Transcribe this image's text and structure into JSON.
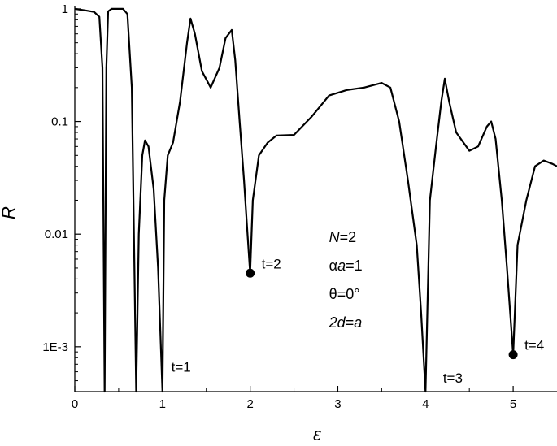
{
  "chart_data": {
    "type": "line",
    "xlabel": "ε",
    "ylabel": "R",
    "xlim": [
      0,
      5.5
    ],
    "ylim": [
      0.0004,
      1.05
    ],
    "yscale": "log",
    "x_ticks": [
      0,
      1,
      2,
      3,
      4,
      5
    ],
    "x_tick_labels": [
      "0",
      "1",
      "2",
      "3",
      "4",
      "5"
    ],
    "y_ticks": [
      1,
      0.1,
      0.01,
      0.001
    ],
    "y_tick_labels": [
      "1",
      "0.1",
      "0.01",
      "1E-3"
    ],
    "grid": false,
    "legend": "none",
    "series": [
      {
        "color": "#000000",
        "points": [
          [
            0.0,
            1.0
          ],
          [
            0.12,
            0.97
          ],
          [
            0.22,
            0.94
          ],
          [
            0.28,
            0.85
          ],
          [
            0.315,
            0.3
          ],
          [
            0.34,
            0.0004
          ],
          [
            0.36,
            0.3
          ],
          [
            0.38,
            0.95
          ],
          [
            0.42,
            1.0
          ],
          [
            0.55,
            1.0
          ],
          [
            0.6,
            0.9
          ],
          [
            0.65,
            0.2
          ],
          [
            0.7,
            0.0004
          ],
          [
            0.73,
            0.01
          ],
          [
            0.77,
            0.05
          ],
          [
            0.8,
            0.068
          ],
          [
            0.84,
            0.06
          ],
          [
            0.9,
            0.025
          ],
          [
            0.95,
            0.005
          ],
          [
            1.0,
            0.0004
          ],
          [
            1.02,
            0.02
          ],
          [
            1.06,
            0.05
          ],
          [
            1.12,
            0.065
          ],
          [
            1.2,
            0.15
          ],
          [
            1.28,
            0.5
          ],
          [
            1.32,
            0.82
          ],
          [
            1.37,
            0.6
          ],
          [
            1.45,
            0.28
          ],
          [
            1.55,
            0.2
          ],
          [
            1.65,
            0.3
          ],
          [
            1.72,
            0.55
          ],
          [
            1.79,
            0.65
          ],
          [
            1.83,
            0.35
          ],
          [
            1.88,
            0.1
          ],
          [
            1.93,
            0.03
          ],
          [
            1.97,
            0.01
          ],
          [
            2.0,
            0.0045
          ],
          [
            2.03,
            0.02
          ],
          [
            2.1,
            0.05
          ],
          [
            2.2,
            0.065
          ],
          [
            2.3,
            0.075
          ],
          [
            2.5,
            0.076
          ],
          [
            2.7,
            0.11
          ],
          [
            2.9,
            0.17
          ],
          [
            3.1,
            0.19
          ],
          [
            3.3,
            0.2
          ],
          [
            3.5,
            0.22
          ],
          [
            3.6,
            0.2
          ],
          [
            3.7,
            0.1
          ],
          [
            3.8,
            0.03
          ],
          [
            3.9,
            0.008
          ],
          [
            3.95,
            0.002
          ],
          [
            4.0,
            0.0004
          ],
          [
            4.05,
            0.02
          ],
          [
            4.12,
            0.06
          ],
          [
            4.18,
            0.15
          ],
          [
            4.22,
            0.24
          ],
          [
            4.27,
            0.15
          ],
          [
            4.35,
            0.08
          ],
          [
            4.5,
            0.055
          ],
          [
            4.6,
            0.06
          ],
          [
            4.7,
            0.09
          ],
          [
            4.75,
            0.1
          ],
          [
            4.8,
            0.07
          ],
          [
            4.87,
            0.02
          ],
          [
            4.93,
            0.005
          ],
          [
            5.0,
            0.00085
          ],
          [
            5.05,
            0.008
          ],
          [
            5.15,
            0.02
          ],
          [
            5.25,
            0.04
          ],
          [
            5.35,
            0.045
          ],
          [
            5.45,
            0.042
          ],
          [
            5.5,
            0.04
          ]
        ]
      }
    ],
    "markers": [
      {
        "x": 2.0,
        "y": 0.0045,
        "label": "t=2"
      },
      {
        "x": 5.0,
        "y": 0.00085,
        "label": "t=4"
      }
    ],
    "annotations": [
      {
        "text": "t=1",
        "x": 1.1,
        "y": 0.0006
      },
      {
        "text": "t=3",
        "x": 4.2,
        "y": 0.00048
      }
    ],
    "params": [
      {
        "pre_italic": "N",
        "rest": "=2"
      },
      {
        "pre_greek": "α",
        "pre_italic": "a",
        "rest": "=1"
      },
      {
        "pre_greek": "θ",
        "rest": "=0°"
      },
      {
        "pre_italic": "2d",
        "rest": "=",
        "post_italic": "a"
      }
    ],
    "params_anchor": {
      "x": 2.9,
      "y": 0.0085
    }
  }
}
